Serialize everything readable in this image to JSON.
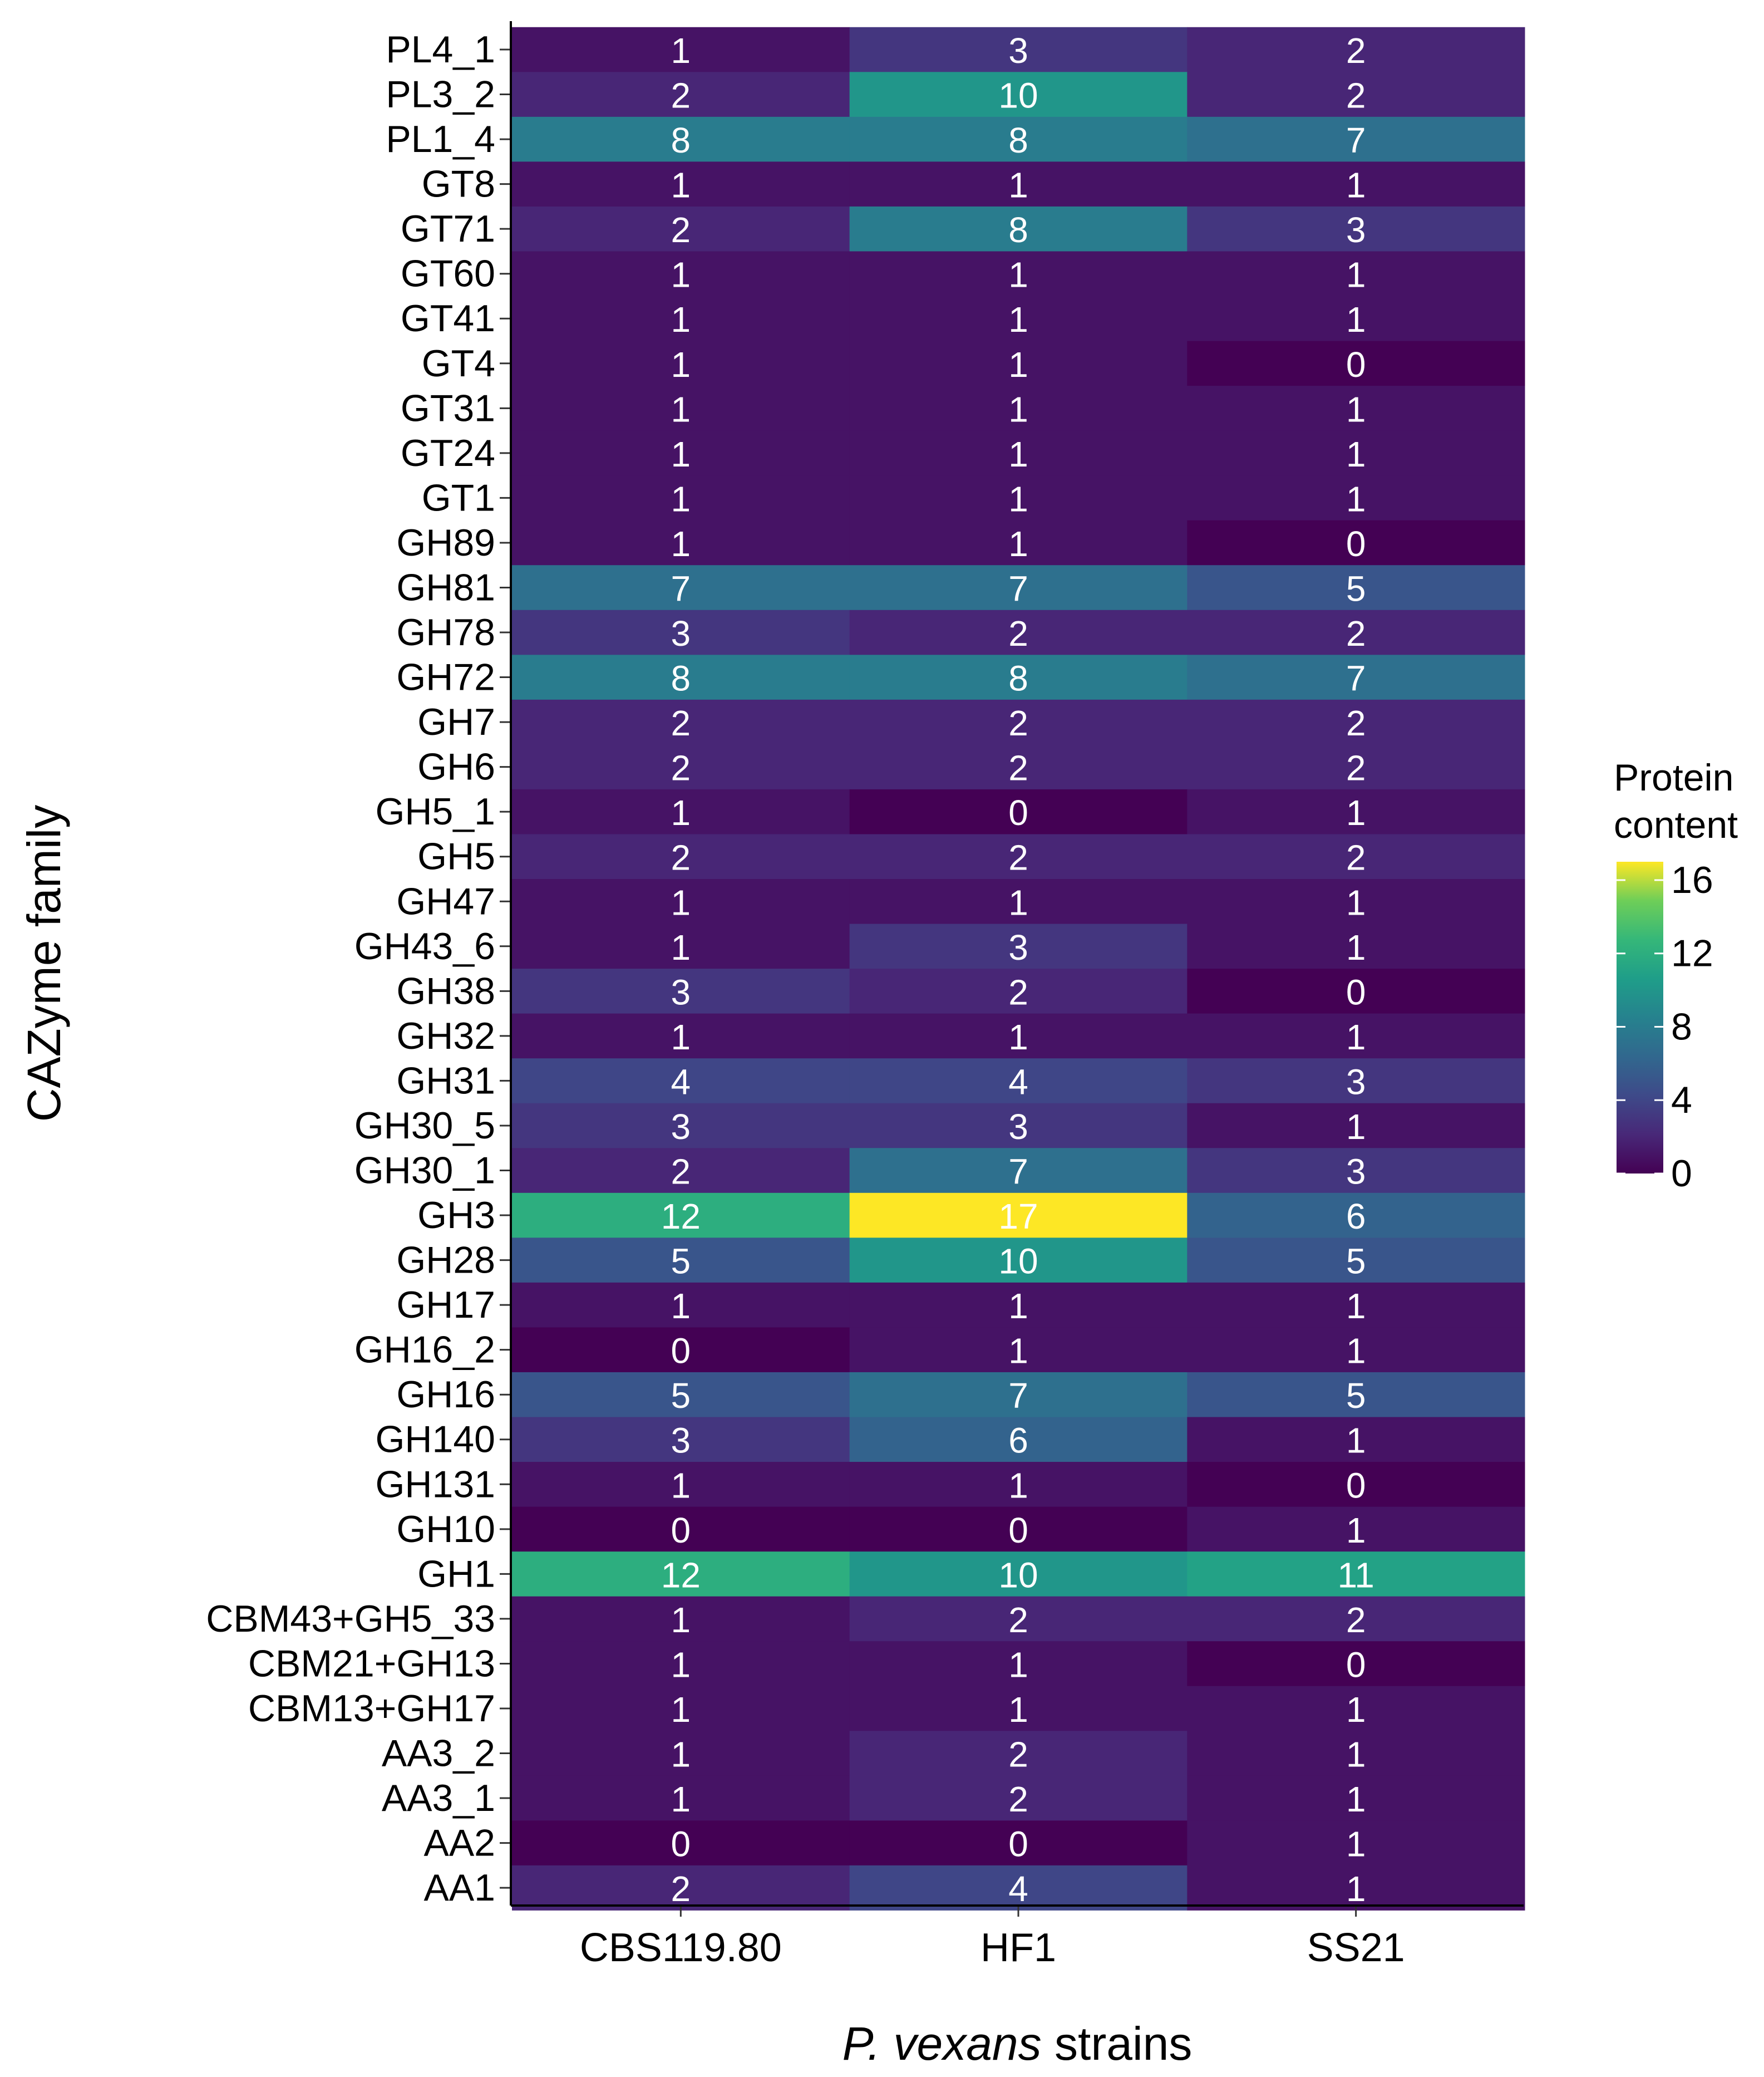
{
  "chart_data": {
    "type": "heatmap",
    "xlabel_italic": "P. vexans",
    "xlabel_rest": " strains",
    "ylabel": "CAZyme family",
    "columns": [
      "CBS119.80",
      "HF1",
      "SS21"
    ],
    "rows": [
      "PL4_1",
      "PL3_2",
      "PL1_4",
      "GT8",
      "GT71",
      "GT60",
      "GT41",
      "GT4",
      "GT31",
      "GT24",
      "GT1",
      "GH89",
      "GH81",
      "GH78",
      "GH72",
      "GH7",
      "GH6",
      "GH5_1",
      "GH5",
      "GH47",
      "GH43_6",
      "GH38",
      "GH32",
      "GH31",
      "GH30_5",
      "GH30_1",
      "GH3",
      "GH28",
      "GH17",
      "GH16_2",
      "GH16",
      "GH140",
      "GH131",
      "GH10",
      "GH1",
      "CBM43+GH5_33",
      "CBM21+GH13",
      "CBM13+GH17",
      "AA3_2",
      "AA3_1",
      "AA2",
      "AA1"
    ],
    "values": [
      [
        1,
        3,
        2
      ],
      [
        2,
        10,
        2
      ],
      [
        8,
        8,
        7
      ],
      [
        1,
        1,
        1
      ],
      [
        2,
        8,
        3
      ],
      [
        1,
        1,
        1
      ],
      [
        1,
        1,
        1
      ],
      [
        1,
        1,
        0
      ],
      [
        1,
        1,
        1
      ],
      [
        1,
        1,
        1
      ],
      [
        1,
        1,
        1
      ],
      [
        1,
        1,
        0
      ],
      [
        7,
        7,
        5
      ],
      [
        3,
        2,
        2
      ],
      [
        8,
        8,
        7
      ],
      [
        2,
        2,
        2
      ],
      [
        2,
        2,
        2
      ],
      [
        1,
        0,
        1
      ],
      [
        2,
        2,
        2
      ],
      [
        1,
        1,
        1
      ],
      [
        1,
        3,
        1
      ],
      [
        3,
        2,
        0
      ],
      [
        1,
        1,
        1
      ],
      [
        4,
        4,
        3
      ],
      [
        3,
        3,
        1
      ],
      [
        2,
        7,
        3
      ],
      [
        12,
        17,
        6
      ],
      [
        5,
        10,
        5
      ],
      [
        1,
        1,
        1
      ],
      [
        0,
        1,
        1
      ],
      [
        5,
        7,
        5
      ],
      [
        3,
        6,
        1
      ],
      [
        1,
        1,
        0
      ],
      [
        0,
        0,
        1
      ],
      [
        12,
        10,
        11
      ],
      [
        1,
        2,
        2
      ],
      [
        1,
        1,
        0
      ],
      [
        1,
        1,
        1
      ],
      [
        1,
        2,
        1
      ],
      [
        1,
        2,
        1
      ],
      [
        0,
        0,
        1
      ],
      [
        2,
        4,
        1
      ]
    ],
    "legend": {
      "title_line1": "Protein",
      "title_line2": "content",
      "ticks": [
        0,
        4,
        8,
        12,
        16
      ],
      "range": [
        0,
        17
      ],
      "colormap": "viridis"
    },
    "grid": true
  }
}
